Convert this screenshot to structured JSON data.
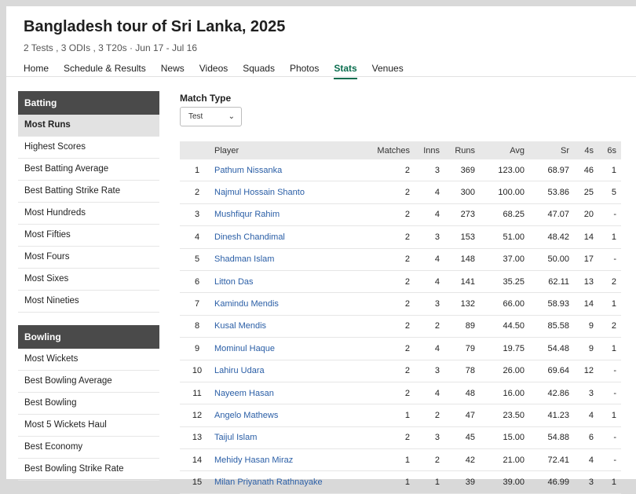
{
  "header": {
    "title": "Bangladesh tour of Sri Lanka, 2025",
    "subtitle": "2 Tests , 3 ODIs , 3 T20s · Jun 17 - Jul 16"
  },
  "nav": {
    "items": [
      {
        "label": "Home",
        "active": false
      },
      {
        "label": "Schedule & Results",
        "active": false
      },
      {
        "label": "News",
        "active": false
      },
      {
        "label": "Videos",
        "active": false
      },
      {
        "label": "Squads",
        "active": false
      },
      {
        "label": "Photos",
        "active": false
      },
      {
        "label": "Stats",
        "active": true
      },
      {
        "label": "Venues",
        "active": false
      }
    ]
  },
  "sidebar": {
    "batting": {
      "title": "Batting",
      "items": [
        {
          "label": "Most Runs",
          "selected": true
        },
        {
          "label": "Highest Scores"
        },
        {
          "label": "Best Batting Average"
        },
        {
          "label": "Best Batting Strike Rate"
        },
        {
          "label": "Most Hundreds"
        },
        {
          "label": "Most Fifties"
        },
        {
          "label": "Most Fours"
        },
        {
          "label": "Most Sixes"
        },
        {
          "label": "Most Nineties"
        }
      ]
    },
    "bowling": {
      "title": "Bowling",
      "items": [
        {
          "label": "Most Wickets"
        },
        {
          "label": "Best Bowling Average"
        },
        {
          "label": "Best Bowling"
        },
        {
          "label": "Most 5 Wickets Haul"
        },
        {
          "label": "Best Economy"
        },
        {
          "label": "Best Bowling Strike Rate"
        }
      ]
    }
  },
  "filter": {
    "label": "Match Type",
    "selected": "Test"
  },
  "table": {
    "columns": [
      "",
      "Player",
      "Matches",
      "Inns",
      "Runs",
      "Avg",
      "Sr",
      "4s",
      "6s"
    ],
    "rows": [
      [
        "1",
        "Pathum Nissanka",
        "2",
        "3",
        "369",
        "123.00",
        "68.97",
        "46",
        "1"
      ],
      [
        "2",
        "Najmul Hossain Shanto",
        "2",
        "4",
        "300",
        "100.00",
        "53.86",
        "25",
        "5"
      ],
      [
        "3",
        "Mushfiqur Rahim",
        "2",
        "4",
        "273",
        "68.25",
        "47.07",
        "20",
        "-"
      ],
      [
        "4",
        "Dinesh Chandimal",
        "2",
        "3",
        "153",
        "51.00",
        "48.42",
        "14",
        "1"
      ],
      [
        "5",
        "Shadman Islam",
        "2",
        "4",
        "148",
        "37.00",
        "50.00",
        "17",
        "-"
      ],
      [
        "6",
        "Litton Das",
        "2",
        "4",
        "141",
        "35.25",
        "62.11",
        "13",
        "2"
      ],
      [
        "7",
        "Kamindu Mendis",
        "2",
        "3",
        "132",
        "66.00",
        "58.93",
        "14",
        "1"
      ],
      [
        "8",
        "Kusal Mendis",
        "2",
        "2",
        "89",
        "44.50",
        "85.58",
        "9",
        "2"
      ],
      [
        "9",
        "Mominul Haque",
        "2",
        "4",
        "79",
        "19.75",
        "54.48",
        "9",
        "1"
      ],
      [
        "10",
        "Lahiru Udara",
        "2",
        "3",
        "78",
        "26.00",
        "69.64",
        "12",
        "-"
      ],
      [
        "11",
        "Nayeem Hasan",
        "2",
        "4",
        "48",
        "16.00",
        "42.86",
        "3",
        "-"
      ],
      [
        "12",
        "Angelo Mathews",
        "1",
        "2",
        "47",
        "23.50",
        "41.23",
        "4",
        "1"
      ],
      [
        "13",
        "Taijul Islam",
        "2",
        "3",
        "45",
        "15.00",
        "54.88",
        "6",
        "-"
      ],
      [
        "14",
        "Mehidy Hasan Miraz",
        "1",
        "2",
        "42",
        "21.00",
        "72.41",
        "4",
        "-"
      ],
      [
        "15",
        "Milan Priyanath Rathnayake",
        "1",
        "1",
        "39",
        "39.00",
        "46.99",
        "3",
        "1"
      ]
    ]
  },
  "colors": {
    "accent": "#0b6e4f",
    "link": "#2a5ea6",
    "sidebar_header": "#4a4a4a"
  }
}
